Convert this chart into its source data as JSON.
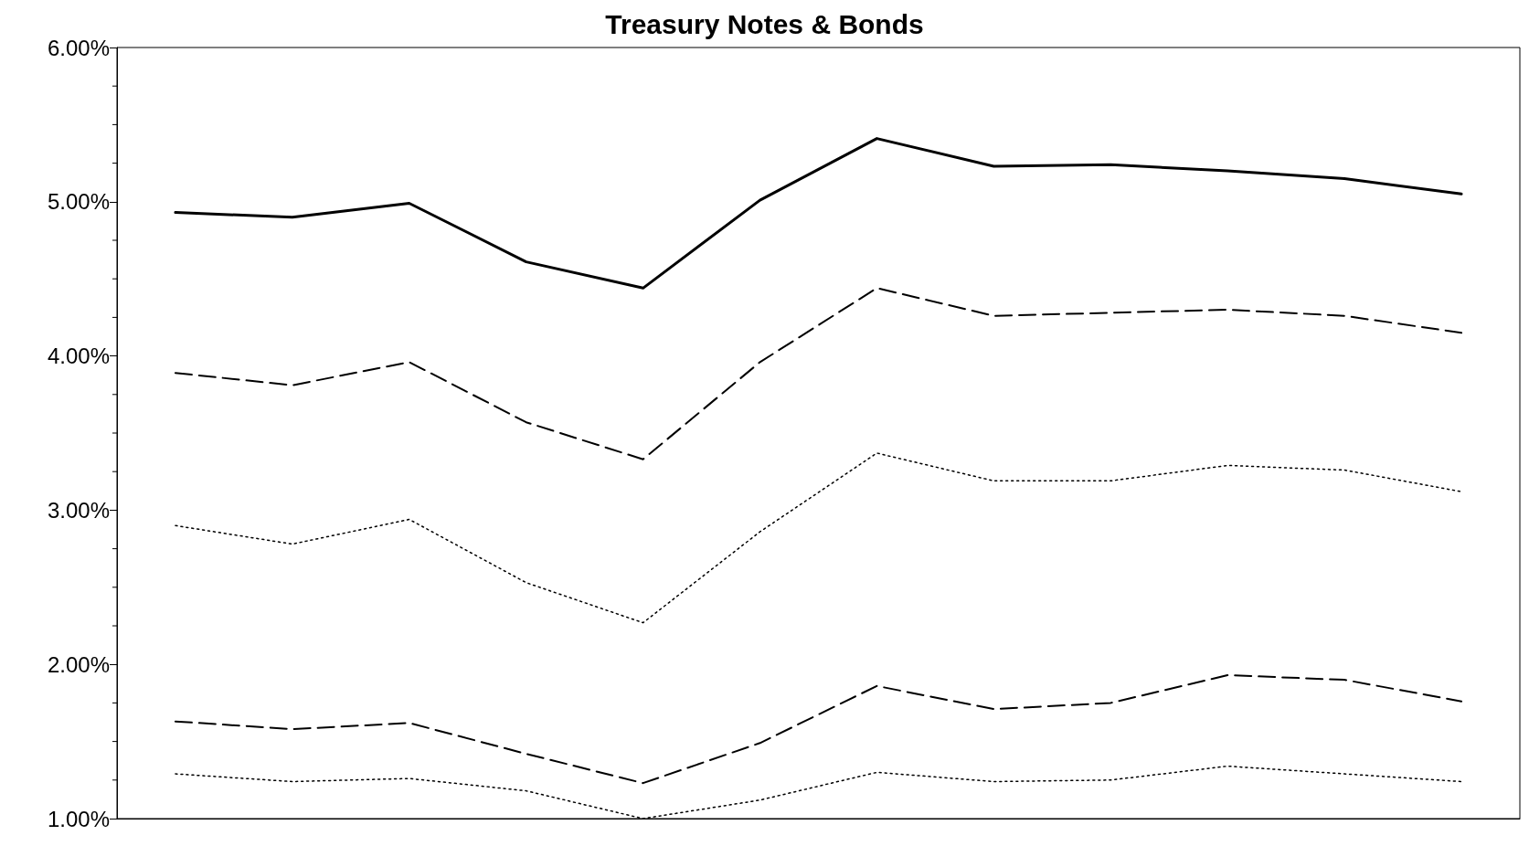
{
  "chart_data": {
    "type": "line",
    "title": "Treasury Notes & Bonds",
    "categories": [
      null,
      null,
      null,
      null,
      null,
      null,
      null,
      null,
      null,
      null,
      null,
      null
    ],
    "series": [
      {
        "color": "#000000",
        "line_style": "solid",
        "values": [
          4.93,
          4.9,
          4.99,
          4.61,
          4.44,
          5.01,
          5.41,
          5.23,
          5.24,
          5.2,
          5.15,
          5.05
        ]
      },
      {
        "color": "#000000",
        "line_style": "dashed",
        "values": [
          3.89,
          3.81,
          3.96,
          3.57,
          3.33,
          3.96,
          4.44,
          4.26,
          4.28,
          4.3,
          4.26,
          4.15
        ]
      },
      {
        "color": "#000000",
        "line_style": "dotted",
        "values": [
          2.9,
          2.78,
          2.94,
          2.53,
          2.27,
          2.86,
          3.37,
          3.19,
          3.19,
          3.29,
          3.26,
          3.12
        ]
      },
      {
        "color": "#000000",
        "line_style": "dashed",
        "values": [
          1.63,
          1.58,
          1.62,
          1.42,
          1.23,
          1.49,
          1.86,
          1.71,
          1.75,
          1.93,
          1.9,
          1.76
        ]
      },
      {
        "color": "#000000",
        "line_style": "dotted",
        "values": [
          1.29,
          1.24,
          1.26,
          1.18,
          1.0,
          1.12,
          1.3,
          1.24,
          1.25,
          1.34,
          1.29,
          1.24
        ]
      }
    ],
    "ylim": [
      1,
      6
    ],
    "yticks": [
      {
        "value": 1,
        "label": "1.00%"
      },
      {
        "value": 2,
        "label": "2.00%"
      },
      {
        "value": 3,
        "label": "3.00%"
      },
      {
        "value": 4,
        "label": "4.00%"
      },
      {
        "value": 5,
        "label": "5.00%"
      },
      {
        "value": 6,
        "label": "6.00%"
      }
    ],
    "grid": false,
    "marker": "none",
    "tick_labels": "y"
  }
}
